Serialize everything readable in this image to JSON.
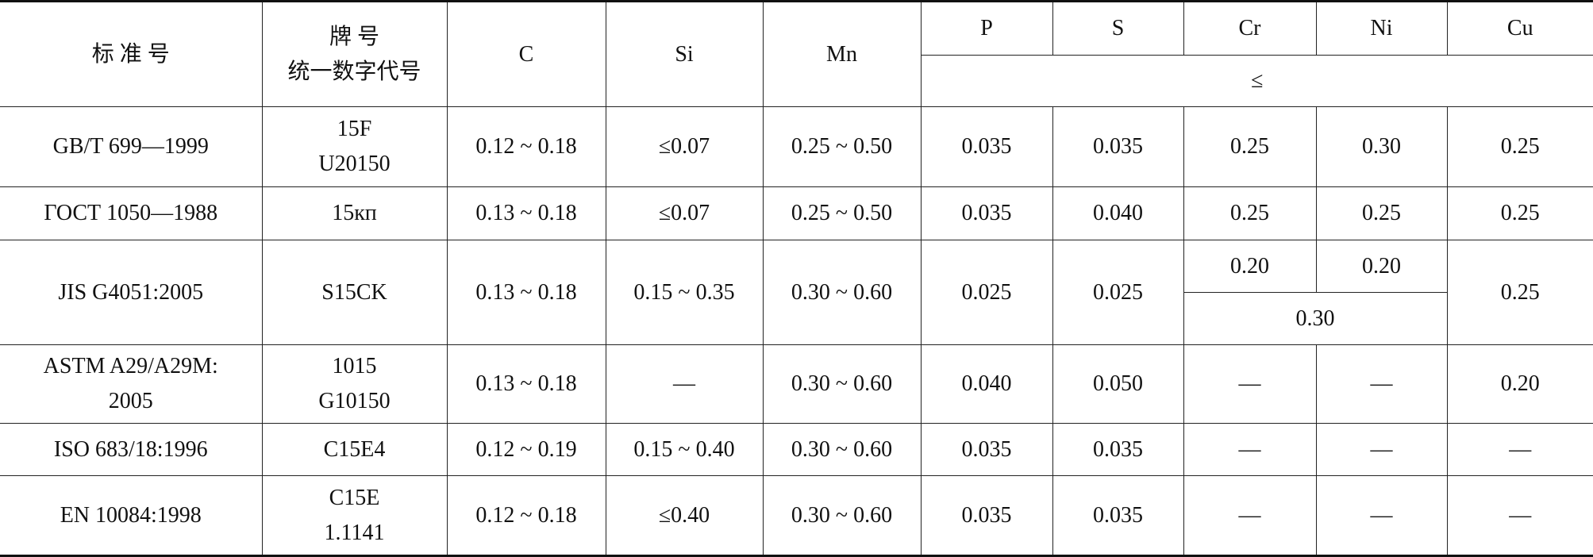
{
  "table": {
    "header": {
      "standard": "标 准 号",
      "grade": [
        "牌 号",
        "统一数字代号"
      ],
      "elements": [
        "C",
        "Si",
        "Mn",
        "P",
        "S",
        "Cr",
        "Ni",
        "Cu"
      ],
      "max_sign": "≤"
    },
    "rows": [
      {
        "standard": [
          "GB/T 699—1999"
        ],
        "grade": [
          "15F",
          "U20150"
        ],
        "cells": [
          "0.12 ~ 0.18",
          "≤0.07",
          "0.25 ~ 0.50",
          "0.035",
          "0.035",
          "0.25",
          "0.30",
          "0.25"
        ]
      },
      {
        "standard": [
          "ГОСТ 1050—1988"
        ],
        "grade": [
          "15кп"
        ],
        "cells": [
          "0.13 ~ 0.18",
          "≤0.07",
          "0.25 ~ 0.50",
          "0.035",
          "0.040",
          "0.25",
          "0.25",
          "0.25"
        ]
      },
      {
        "standard": [
          "JIS G4051:2005"
        ],
        "grade": [
          "S15CK"
        ],
        "cells": [
          "0.13 ~ 0.18",
          "0.15 ~ 0.35",
          "0.30 ~ 0.60",
          "0.025",
          "0.025",
          "0.20",
          "0.20",
          "0.25"
        ],
        "cr_ni_total": "0.30"
      },
      {
        "standard": [
          "ASTM A29/A29M:",
          "2005"
        ],
        "grade": [
          "1015",
          "G10150"
        ],
        "cells": [
          "0.13 ~ 0.18",
          "—",
          "0.30 ~ 0.60",
          "0.040",
          "0.050",
          "—",
          "—",
          "0.20"
        ]
      },
      {
        "standard": [
          "ISO 683/18:1996"
        ],
        "grade": [
          "C15E4"
        ],
        "cells": [
          "0.12 ~ 0.19",
          "0.15 ~ 0.40",
          "0.30 ~ 0.60",
          "0.035",
          "0.035",
          "—",
          "—",
          "—"
        ]
      },
      {
        "standard": [
          "EN 10084:1998"
        ],
        "grade": [
          "C15E",
          "1.1141"
        ],
        "cells": [
          "0.12 ~ 0.18",
          "≤0.40",
          "0.30 ~ 0.60",
          "0.035",
          "0.035",
          "—",
          "—",
          "—"
        ]
      }
    ]
  }
}
